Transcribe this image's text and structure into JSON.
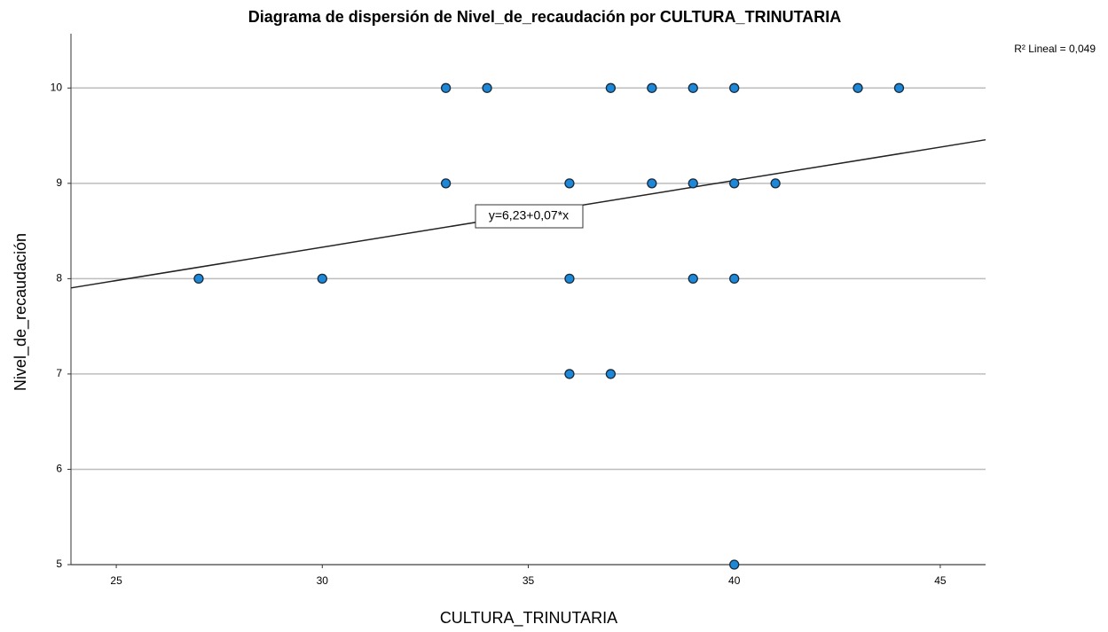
{
  "chart_data": {
    "type": "scatter",
    "title": "Diagrama de dispersión de Nivel_de_recaudación por CULTURA_TRINUTARIA",
    "x_label": "CULTURA_TRINUTARIA",
    "y_label": "Nivel_de_recaudación",
    "series": [
      {
        "color": "#1e88d8",
        "x": [
          33,
          34,
          37,
          38,
          39,
          40,
          43,
          44,
          33,
          36,
          38,
          39,
          40,
          41,
          27,
          30,
          36,
          39,
          40,
          36,
          37,
          40
        ],
        "values": [
          10,
          10,
          10,
          10,
          10,
          10,
          10,
          10,
          9,
          9,
          9,
          9,
          9,
          9,
          8,
          8,
          8,
          8,
          8,
          7,
          7,
          5
        ]
      }
    ],
    "xlim": [
      23.9,
      46.1
    ],
    "xticks": [
      25,
      30,
      35,
      40,
      45
    ],
    "ylim": [
      5,
      10.57
    ],
    "yticks": [
      5,
      6,
      7,
      8,
      9,
      10
    ],
    "grid": true,
    "fit_line": {
      "label": "y=6,23+0,07*x",
      "intercept": 6.23,
      "slope": 0.07
    },
    "r2_label": "R² Lineal = 0,049"
  }
}
